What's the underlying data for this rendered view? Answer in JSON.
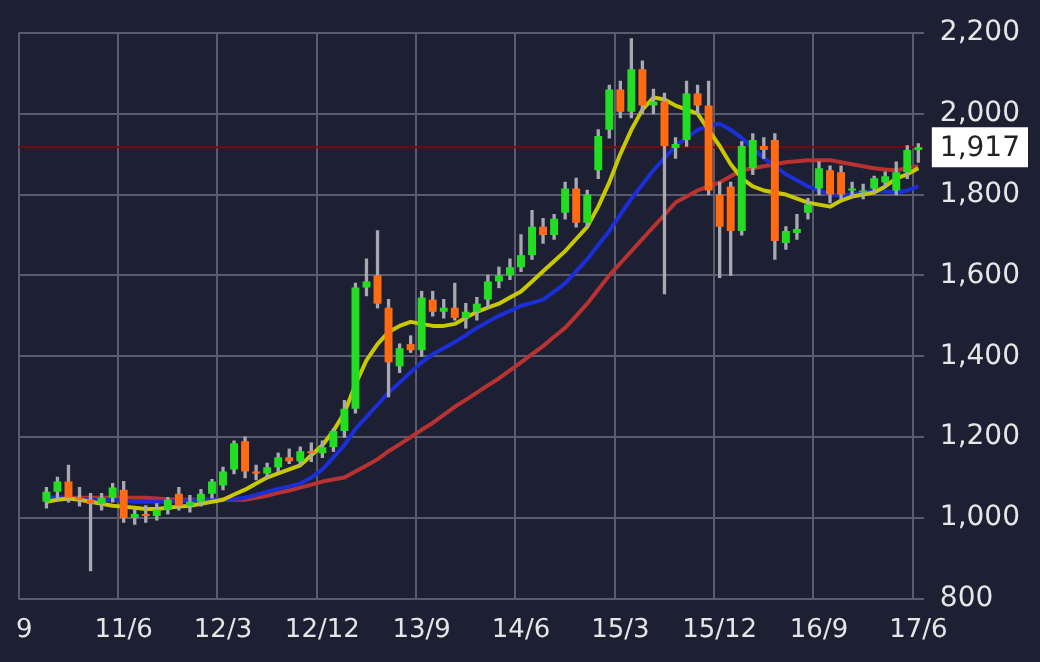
{
  "chart_data": {
    "type": "candlestick",
    "categories": [
      "9",
      null,
      null,
      null,
      null,
      null,
      null,
      null,
      null,
      "11/6",
      null,
      null,
      null,
      null,
      null,
      null,
      null,
      null,
      "12/3",
      null,
      null,
      null,
      null,
      null,
      null,
      null,
      null,
      "12/12",
      null,
      null,
      null,
      null,
      null,
      null,
      null,
      null,
      "13/9",
      null,
      null,
      null,
      null,
      null,
      null,
      null,
      null,
      "14/6",
      null,
      null,
      null,
      null,
      null,
      null,
      null,
      null,
      "15/3",
      null,
      null,
      null,
      null,
      null,
      null,
      null,
      null,
      "15/12",
      null,
      null,
      null,
      null,
      null,
      null,
      null,
      null,
      "16/9",
      null,
      null,
      null,
      null,
      null,
      null,
      null,
      null,
      "17/6"
    ],
    "ohlc": [
      null,
      null,
      [
        1040,
        1075,
        1025,
        1065
      ],
      [
        1065,
        1100,
        1045,
        1090
      ],
      [
        1090,
        1130,
        1040,
        1050
      ],
      [
        1050,
        1075,
        1030,
        1045
      ],
      [
        1045,
        1060,
        870,
        1035
      ],
      [
        1035,
        1060,
        1020,
        1050
      ],
      [
        1050,
        1085,
        1040,
        1075
      ],
      [
        1070,
        1090,
        990,
        1000
      ],
      [
        1000,
        1020,
        985,
        1010
      ],
      [
        1010,
        1030,
        990,
        1005
      ],
      [
        1005,
        1035,
        995,
        1020
      ],
      [
        1020,
        1050,
        1010,
        1045
      ],
      [
        1060,
        1075,
        1020,
        1030
      ],
      [
        1030,
        1055,
        1015,
        1040
      ],
      [
        1040,
        1070,
        1030,
        1060
      ],
      [
        1060,
        1095,
        1050,
        1090
      ],
      [
        1080,
        1125,
        1070,
        1115
      ],
      [
        1120,
        1190,
        1110,
        1185
      ],
      [
        1190,
        1200,
        1100,
        1115
      ],
      [
        1115,
        1130,
        1095,
        1110
      ],
      [
        1110,
        1135,
        1100,
        1125
      ],
      [
        1125,
        1160,
        1115,
        1150
      ],
      [
        1150,
        1170,
        1135,
        1140
      ],
      [
        1140,
        1175,
        1130,
        1165
      ],
      [
        1165,
        1185,
        1140,
        1160
      ],
      [
        1160,
        1190,
        1150,
        1175
      ],
      [
        1175,
        1220,
        1165,
        1215
      ],
      [
        1215,
        1290,
        1200,
        1270
      ],
      [
        1270,
        1580,
        1260,
        1570
      ],
      [
        1570,
        1640,
        1550,
        1585
      ],
      [
        1600,
        1710,
        1520,
        1530
      ],
      [
        1520,
        1540,
        1300,
        1385
      ],
      [
        1375,
        1430,
        1360,
        1420
      ],
      [
        1430,
        1450,
        1410,
        1415
      ],
      [
        1415,
        1560,
        1400,
        1545
      ],
      [
        1540,
        1560,
        1500,
        1510
      ],
      [
        1510,
        1540,
        1495,
        1520
      ],
      [
        1520,
        1580,
        1490,
        1495
      ],
      [
        1495,
        1530,
        1470,
        1510
      ],
      [
        1510,
        1545,
        1490,
        1530
      ],
      [
        1540,
        1600,
        1520,
        1585
      ],
      [
        1585,
        1620,
        1570,
        1600
      ],
      [
        1600,
        1640,
        1590,
        1620
      ],
      [
        1620,
        1700,
        1610,
        1650
      ],
      [
        1650,
        1760,
        1640,
        1720
      ],
      [
        1720,
        1740,
        1680,
        1700
      ],
      [
        1700,
        1750,
        1690,
        1740
      ],
      [
        1755,
        1830,
        1740,
        1815
      ],
      [
        1815,
        1840,
        1720,
        1730
      ],
      [
        1730,
        1810,
        1720,
        1800
      ],
      [
        1860,
        1960,
        1840,
        1945
      ],
      [
        1960,
        2070,
        1940,
        2060
      ],
      [
        2060,
        2080,
        1990,
        2005
      ],
      [
        2005,
        2185,
        1990,
        2110
      ],
      [
        2110,
        2130,
        2000,
        2020
      ],
      [
        2020,
        2060,
        2000,
        2030
      ],
      [
        2030,
        2050,
        1555,
        1920
      ],
      [
        1915,
        1940,
        1890,
        1925
      ],
      [
        1935,
        2080,
        1920,
        2050
      ],
      [
        2050,
        2070,
        2000,
        2020
      ],
      [
        2020,
        2080,
        1800,
        1810
      ],
      [
        1800,
        1830,
        1595,
        1720
      ],
      [
        1820,
        1830,
        1600,
        1710
      ],
      [
        1710,
        1930,
        1700,
        1920
      ],
      [
        1865,
        1950,
        1850,
        1935
      ],
      [
        1920,
        1940,
        1890,
        1910
      ],
      [
        1935,
        1950,
        1640,
        1685
      ],
      [
        1680,
        1720,
        1665,
        1710
      ],
      [
        1705,
        1750,
        1690,
        1715
      ],
      [
        1755,
        1790,
        1740,
        1775
      ],
      [
        1815,
        1880,
        1800,
        1865
      ],
      [
        1860,
        1870,
        1780,
        1800
      ],
      [
        1855,
        1870,
        1790,
        1800
      ],
      [
        1810,
        1830,
        1795,
        1815
      ],
      [
        1805,
        1825,
        1790,
        1810
      ],
      [
        1815,
        1845,
        1805,
        1840
      ],
      [
        1830,
        1855,
        1820,
        1845
      ],
      [
        1810,
        1880,
        1800,
        1855
      ],
      [
        1855,
        1920,
        1840,
        1910
      ],
      [
        1910,
        1925,
        1880,
        1917
      ]
    ],
    "colors": [
      null,
      null,
      "#22dd22",
      "#22dd22",
      "#ff6a13",
      "#ff6a13",
      "#ff6a13",
      "#22dd22",
      "#22dd22",
      "#ff6a13",
      "#22dd22",
      "#ff6a13",
      "#22dd22",
      "#22dd22",
      "#ff6a13",
      "#22dd22",
      "#22dd22",
      "#22dd22",
      "#22dd22",
      "#22dd22",
      "#ff6a13",
      "#ff6a13",
      "#22dd22",
      "#22dd22",
      "#ff6a13",
      "#22dd22",
      "#ff6a13",
      "#22dd22",
      "#22dd22",
      "#22dd22",
      "#22dd22",
      "#22dd22",
      "#ff6a13",
      "#ff6a13",
      "#22dd22",
      "#ff6a13",
      "#22dd22",
      "#ff6a13",
      "#22dd22",
      "#ff6a13",
      "#22dd22",
      "#22dd22",
      "#22dd22",
      "#22dd22",
      "#22dd22",
      "#22dd22",
      "#22dd22",
      "#ff6a13",
      "#22dd22",
      "#22dd22",
      "#ff6a13",
      "#22dd22",
      "#22dd22",
      "#22dd22",
      "#ff6a13",
      "#22dd22",
      "#ff6a13",
      "#22dd22",
      "#ff6a13",
      "#22dd22",
      "#22dd22",
      "#ff6a13",
      "#ff6a13",
      "#ff6a13",
      "#ff6a13",
      "#22dd22",
      "#22dd22",
      "#ff6a13",
      "#ff6a13",
      "#22dd22",
      "#22dd22",
      "#22dd22",
      "#22dd22",
      "#ff6a13",
      "#ff6a13",
      "#22dd22",
      "#22dd22",
      "#22dd22",
      "#22dd22",
      "#22dd22",
      "#22dd22",
      "#22dd22"
    ],
    "series": [
      {
        "type": "line",
        "color": "#c8c800",
        "values": [
          null,
          null,
          1040,
          1045,
          1048,
          1045,
          1040,
          1035,
          1030,
          1028,
          1025,
          1022,
          1022,
          1025,
          1028,
          1030,
          1035,
          1040,
          1045,
          1058,
          1070,
          1085,
          1100,
          1110,
          1120,
          1130,
          1155,
          1180,
          1215,
          1260,
          1330,
          1390,
          1430,
          1460,
          1475,
          1485,
          1480,
          1475,
          1475,
          1480,
          1495,
          1510,
          1520,
          1530,
          1545,
          1560,
          1585,
          1610,
          1635,
          1660,
          1690,
          1720,
          1770,
          1830,
          1900,
          1960,
          2010,
          2040,
          2035,
          2020,
          2010,
          2000,
          1960,
          1920,
          1875,
          1840,
          1820,
          1810,
          1805,
          1800,
          1790,
          1780,
          1775,
          1770,
          1785,
          1795,
          1800,
          1805,
          1820,
          1840,
          1850,
          1865
        ]
      },
      {
        "type": "line",
        "color": "#1a2fd8",
        "values": [
          null,
          null,
          1050,
          1050,
          1048,
          1046,
          1045,
          1045,
          1045,
          1043,
          1040,
          1040,
          1040,
          1040,
          1042,
          1043,
          1044,
          1045,
          1045,
          1047,
          1050,
          1057,
          1065,
          1072,
          1078,
          1085,
          1100,
          1120,
          1150,
          1180,
          1220,
          1250,
          1280,
          1310,
          1335,
          1360,
          1385,
          1405,
          1420,
          1435,
          1452,
          1470,
          1485,
          1500,
          1512,
          1525,
          1532,
          1540,
          1560,
          1580,
          1610,
          1640,
          1675,
          1710,
          1750,
          1790,
          1825,
          1860,
          1890,
          1920,
          1940,
          1960,
          1970,
          1975,
          1960,
          1940,
          1915,
          1890,
          1870,
          1850,
          1835,
          1820,
          1810,
          1800,
          1798,
          1800,
          1805,
          1810,
          1808,
          1805,
          1810,
          1820
        ]
      },
      {
        "type": "line",
        "color": "#b83232",
        "values": [
          null,
          null,
          1050,
          1050,
          1050,
          1050,
          1050,
          1050,
          1050,
          1050,
          1050,
          1050,
          1048,
          1046,
          1045,
          1045,
          1045,
          1045,
          1045,
          1045,
          1045,
          1050,
          1055,
          1062,
          1068,
          1075,
          1082,
          1090,
          1095,
          1100,
          1115,
          1130,
          1145,
          1165,
          1182,
          1200,
          1218,
          1235,
          1255,
          1275,
          1292,
          1310,
          1328,
          1345,
          1365,
          1385,
          1405,
          1425,
          1448,
          1470,
          1500,
          1530,
          1565,
          1600,
          1630,
          1660,
          1690,
          1720,
          1750,
          1780,
          1795,
          1810,
          1820,
          1830,
          1845,
          1860,
          1865,
          1870,
          1875,
          1880,
          1882,
          1885,
          1885,
          1885,
          1880,
          1875,
          1870,
          1865,
          1862,
          1860,
          1865,
          1870
        ]
      }
    ],
    "ylim": [
      800,
      2200
    ],
    "yticks": [
      800,
      {
        "value": 1000,
        "label": "1,000"
      },
      {
        "value": 1200,
        "label": "1,200"
      },
      {
        "value": 1400,
        "label": "1,400"
      },
      {
        "value": 1600,
        "label": "1,600"
      },
      {
        "value": 1800,
        "label": "1,800"
      },
      {
        "value": 2000,
        "label": "2,000"
      },
      {
        "value": 2200,
        "label": "2,200"
      }
    ],
    "grid": true,
    "ref_lines": [
      {
        "axis": "y",
        "value": 1917,
        "label": "1,917",
        "color": "#7a0a0a"
      }
    ]
  }
}
